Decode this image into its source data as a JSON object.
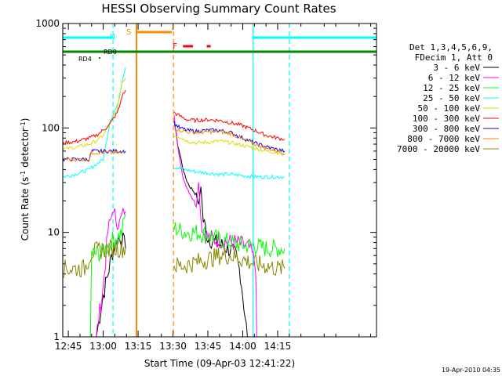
{
  "chart_data": {
    "type": "line",
    "title": "HESSI Observing Summary Count Rates",
    "xlabel": "Start Time (09-Apr-03 12:41:22)",
    "ylabel_main": "Count Rate (s",
    "ylabel_sup1": "-1",
    "ylabel_mid": " detector",
    "ylabel_sup2": "-1",
    "ylabel_end": ")",
    "yscale": "log",
    "ylim": [
      1,
      1000
    ],
    "xlim_minutes": [
      -17.4,
      117.5
    ],
    "xtick_labels": [
      "12:45",
      "13:00",
      "13:15",
      "13:30",
      "13:45",
      "14:00",
      "14:15"
    ],
    "xtick_minutes": [
      -15,
      0,
      15,
      30,
      45,
      60,
      75
    ],
    "ytick_labels": [
      "1",
      "10",
      "100",
      "1000"
    ],
    "ytick_values": [
      1,
      10,
      100,
      1000
    ],
    "timestamp": "19-Apr-2010 04:35",
    "legend_header": [
      "Det 1,3,4,5,6,9,",
      "FDecim 1, Att 0"
    ],
    "series": [
      {
        "name": "3 - 6 keV",
        "color": "#000000",
        "segments": [
          {
            "x": [
              -4.5,
              -3.5,
              -3,
              0,
              2,
              4,
              6,
              8,
              9.6
            ],
            "y": [
              1,
              1,
              1,
              2.5,
              4,
              6.5,
              8.5,
              9,
              7
            ]
          },
          {
            "x": [
              30.5,
              32,
              35,
              37,
              40,
              41,
              42,
              43,
              45,
              48,
              51,
              54,
              57,
              59,
              60.5,
              62
            ],
            "y": [
              120,
              70,
              35,
              28,
              23,
              18,
              28,
              13,
              9,
              8,
              7.5,
              7,
              6,
              4,
              2,
              1
            ]
          }
        ]
      },
      {
        "name": "6 - 12 keV",
        "color": "#ff00ff",
        "segments": [
          {
            "x": [
              -4.5,
              -3.5,
              -3,
              0,
              2,
              4,
              6,
              7,
              8,
              9.6
            ],
            "y": [
              1,
              1,
              1,
              3,
              10,
              16,
              13,
              12,
              14,
              16
            ]
          },
          {
            "x": [
              30.5,
              32,
              34,
              36,
              38,
              40,
              41,
              42,
              43,
              45,
              48,
              51,
              54,
              57,
              60,
              63,
              65.5,
              66
            ],
            "y": [
              130,
              70,
              35,
              27,
              22,
              18,
              30,
              14,
              10,
              9,
              8.5,
              8.5,
              8,
              8,
              7.5,
              7,
              5,
              1
            ]
          }
        ]
      },
      {
        "name": "12 - 25 keV",
        "color": "#00ff00",
        "segments": [
          {
            "x": [
              -9,
              -8.5,
              -8,
              -5.5,
              -5,
              -4.5,
              0,
              3,
              6,
              8,
              9.6
            ],
            "y": [
              1,
              1,
              1,
              1,
              6.2,
              6.2,
              6.5,
              8,
              9,
              10,
              15
            ]
          },
          {
            "x": [
              30.5,
              33,
              36,
              40,
              45,
              50,
              55,
              60,
              65,
              70,
              75,
              78
            ],
            "y": [
              11,
              10.5,
              10,
              10,
              9.5,
              8.5,
              8,
              7.5,
              7.5,
              7,
              7,
              7
            ]
          }
        ]
      },
      {
        "name": "25 - 50 keV",
        "color": "#00ffff",
        "segments": [
          {
            "x": [
              -17.4,
              -12,
              -6,
              -3,
              0,
              3,
              6,
              7,
              8,
              9.6
            ],
            "y": [
              34,
              36,
              40,
              45,
              50,
              120,
              160,
              200,
              280,
              380
            ]
          },
          {
            "x": [
              30.5,
              35,
              40,
              45,
              50,
              55,
              60,
              65,
              70,
              75,
              78
            ],
            "y": [
              42,
              40,
              38,
              37,
              36,
              36,
              35,
              34,
              34,
              34,
              34
            ]
          }
        ]
      },
      {
        "name": "50 - 100 keV",
        "color": "#dddd00",
        "segments": [
          {
            "x": [
              -17.4,
              -12,
              -6,
              -3,
              0,
              3,
              6,
              7,
              8,
              9.6
            ],
            "y": [
              63,
              65,
              70,
              75,
              85,
              110,
              150,
              200,
              270,
              300
            ]
          },
          {
            "x": [
              30.5,
              33,
              36,
              40,
              45,
              50,
              55,
              60,
              65,
              70,
              75,
              78
            ],
            "y": [
              85,
              82,
              75,
              72,
              73,
              75,
              72,
              68,
              64,
              60,
              58,
              57
            ]
          }
        ]
      },
      {
        "name": "100 - 300 keV",
        "color": "#ff0000",
        "segments": [
          {
            "x": [
              -17.4,
              -12,
              -6,
              -3,
              0,
              3,
              6,
              7,
              8,
              9.6
            ],
            "y": [
              72,
              74,
              80,
              85,
              95,
              110,
              140,
              160,
              200,
              230
            ]
          },
          {
            "x": [
              30.5,
              33,
              36,
              40,
              45,
              50,
              55,
              60,
              65,
              70,
              75,
              78
            ],
            "y": [
              140,
              130,
              120,
              118,
              120,
              118,
              112,
              105,
              95,
              85,
              80,
              78
            ]
          }
        ]
      },
      {
        "name": "300 - 800 keV",
        "color": "#0000ff",
        "segments": [
          {
            "x": [
              -17.4,
              -12,
              -6,
              -5,
              -4.5,
              0,
              3,
              6,
              9.6
            ],
            "y": [
              50,
              50,
              50,
              60,
              60,
              60,
              60,
              60,
              60
            ]
          },
          {
            "x": [
              30.5,
              33,
              36,
              40,
              45,
              50,
              55,
              60,
              65,
              70,
              75,
              78
            ],
            "y": [
              110,
              100,
              95,
              93,
              95,
              95,
              90,
              80,
              72,
              66,
              62,
              60
            ]
          }
        ]
      },
      {
        "name": "800 - 7000 keV",
        "color": "#ff8800",
        "segments": [
          {
            "x": [
              -17.4,
              -12,
              -6,
              -5,
              -4.5,
              0,
              3,
              6,
              9.6
            ],
            "y": [
              50,
              50,
              50,
              58,
              58,
              58,
              58,
              58,
              58
            ]
          },
          {
            "x": [
              30.5,
              33,
              36,
              40,
              45,
              50,
              55,
              60,
              65,
              70,
              75,
              78
            ],
            "y": [
              100,
              95,
              92,
              90,
              92,
              92,
              88,
              78,
              70,
              64,
              60,
              56
            ]
          }
        ]
      },
      {
        "name": "7000 - 20000 keV",
        "color": "#888800",
        "segments": [
          {
            "x": [
              -17.4,
              -12,
              -8,
              -5,
              0,
              4,
              6,
              9.6
            ],
            "y": [
              4.5,
              4.5,
              4.5,
              6.5,
              6.8,
              7,
              7,
              7
            ]
          },
          {
            "x": [
              30.5,
              35,
              40,
              45,
              50,
              55,
              60,
              65,
              70,
              75,
              78
            ],
            "y": [
              4.8,
              4.8,
              5.2,
              5.5,
              6,
              6,
              5.5,
              5,
              4.8,
              4.5,
              4.5
            ]
          }
        ]
      }
    ],
    "annotations": {
      "night_bars": [
        {
          "label": "N",
          "x": [
            -17.4,
            4.0
          ],
          "color": "#00ffff",
          "label_color": "#00ffff"
        },
        {
          "label": "",
          "x": [
            64.4,
            117.5
          ],
          "color": "#00ffff",
          "label_color": "#00ffff"
        }
      ],
      "night_lines": [
        {
          "x": -17.4,
          "style": "solid"
        },
        {
          "x": 4.2,
          "style": "dashed"
        },
        {
          "x": 64.4,
          "style": "solid"
        },
        {
          "x": 80.0,
          "style": "dashed"
        }
      ],
      "saa": {
        "label": "S",
        "x": [
          14.3,
          29.5
        ],
        "color": "#ff8800"
      },
      "saa_lines": [
        {
          "x": 14.3,
          "style": "solid"
        },
        {
          "x": 30.2,
          "style": "dashed"
        }
      ],
      "flare": {
        "label": "F",
        "segments": [
          [
            34.3,
            38.6
          ],
          [
            44.5,
            46.2
          ]
        ],
        "color": "#ff0000"
      },
      "rd_labels": [
        {
          "label": "RD0",
          "color": "#008800"
        },
        {
          "label": "RD4",
          "color": "#008800"
        }
      ],
      "rd_line_color": "#008800"
    }
  }
}
